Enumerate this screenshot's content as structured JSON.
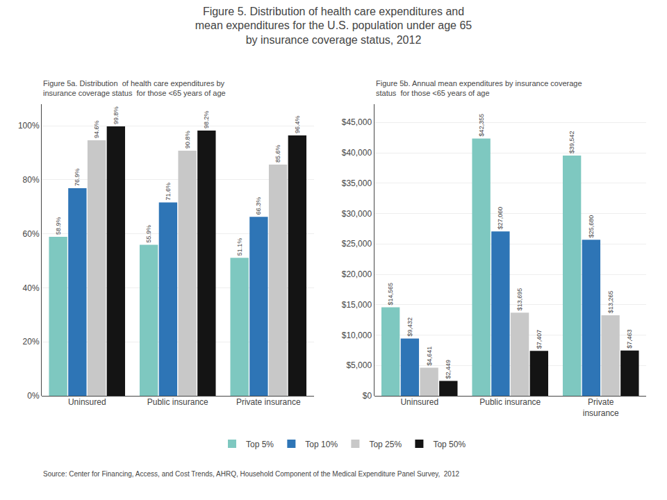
{
  "title": "Figure 5. Distribution of health care expenditures and\nmean expenditures for the U.S. population under age 65\nby insurance coverage status, 2012",
  "annotations": [
    "Source: Center for Financing, Access, and Cost Trends, AHRQ, Household Component of the Medical Expenditure Panel Survey,  2012"
  ],
  "chart_data": [
    {
      "type": "bar",
      "title": "Figure 5a. Distribution  of health care expenditures by\ninsurance coverage status  for those <65 years of age",
      "categories": [
        "Uninsured",
        "Public insurance",
        "Private insurance"
      ],
      "series": [
        {
          "name": "Top 5%",
          "color": "#7EC8C0",
          "values": [
            58.9,
            55.9,
            51.1
          ],
          "value_labels": [
            "58.9%",
            "55.9%",
            "51.1%"
          ]
        },
        {
          "name": "Top 10%",
          "color": "#2E75B6",
          "values": [
            76.9,
            71.6,
            66.3
          ],
          "value_labels": [
            "76.9%",
            "71.6%",
            "66.3%"
          ]
        },
        {
          "name": "Top 25%",
          "color": "#C8C8C8",
          "values": [
            94.6,
            90.8,
            85.6
          ],
          "value_labels": [
            "94.6%",
            "90.8%",
            "85.6%"
          ]
        },
        {
          "name": "Top 50%",
          "color": "#141414",
          "values": [
            99.8,
            98.2,
            96.4
          ],
          "value_labels": [
            "99.8%",
            "98.2%",
            "96.4%"
          ]
        }
      ],
      "ylim": [
        0,
        108
      ],
      "yticks": [
        {
          "value": 0,
          "label": "0%"
        },
        {
          "value": 20,
          "label": "20%"
        },
        {
          "value": 40,
          "label": "40%"
        },
        {
          "value": 60,
          "label": "60%"
        },
        {
          "value": 80,
          "label": "80%"
        },
        {
          "value": 100,
          "label": "100%"
        }
      ],
      "grid": true,
      "data_labels": true,
      "legend": "bottom"
    },
    {
      "type": "bar",
      "title": "Figure 5b. Annual mean expenditures by insurance coverage\nstatus  for those <65 years of age",
      "categories": [
        "Uninsured",
        "Public insurance",
        "Private\ninsurance"
      ],
      "series": [
        {
          "name": "Top 5%",
          "color": "#7EC8C0",
          "values": [
            14565,
            42355,
            39542
          ],
          "value_labels": [
            "$14,565",
            "$42,355",
            "$39,542"
          ]
        },
        {
          "name": "Top 10%",
          "color": "#2E75B6",
          "values": [
            9432,
            27060,
            25680
          ],
          "value_labels": [
            "$9,432",
            "$27,060",
            "$25,680"
          ]
        },
        {
          "name": "Top 25%",
          "color": "#C8C8C8",
          "values": [
            4641,
            13695,
            13265
          ],
          "value_labels": [
            "$4,641",
            "$13,695",
            "$13,265"
          ]
        },
        {
          "name": "Top 50%",
          "color": "#141414",
          "values": [
            2449,
            7407,
            7463
          ],
          "value_labels": [
            "$2,449",
            "$7,407",
            "$7,463"
          ]
        }
      ],
      "ylim": [
        0,
        48000
      ],
      "yticks": [
        {
          "value": 0,
          "label": "$0"
        },
        {
          "value": 5000,
          "label": "$5,000"
        },
        {
          "value": 10000,
          "label": "$10,000"
        },
        {
          "value": 15000,
          "label": "$15,000"
        },
        {
          "value": 20000,
          "label": "$20,000"
        },
        {
          "value": 25000,
          "label": "$25,000"
        },
        {
          "value": 30000,
          "label": "$30,000"
        },
        {
          "value": 35000,
          "label": "$35,000"
        },
        {
          "value": 40000,
          "label": "$40,000"
        },
        {
          "value": 45000,
          "label": "$45,000"
        }
      ],
      "grid": true,
      "data_labels": true
    }
  ]
}
